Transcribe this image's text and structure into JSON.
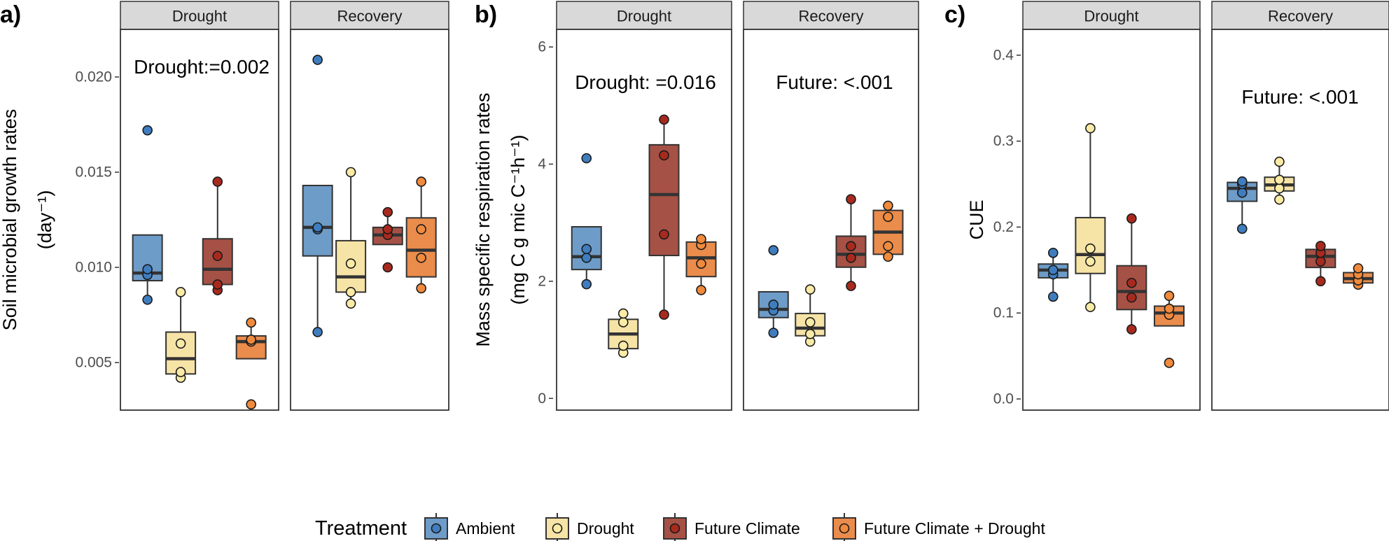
{
  "chart_data": [
    {
      "type": "box",
      "panel_label": "a)",
      "ylabel": "Soil microbial growth rates",
      "ylabel_unit": "(day⁻¹)",
      "ylim": [
        0.0025,
        0.0225
      ],
      "yticks": [
        0.005,
        0.01,
        0.015,
        0.02
      ],
      "ytick_labels": [
        "0.005",
        "0.010",
        "0.015",
        "0.020"
      ],
      "facets": [
        {
          "title": "Drought",
          "annotation": "Drought:=0.002",
          "groups": [
            {
              "treatment": "Ambient",
              "q1": 0.0093,
              "median": 0.0097,
              "q3": 0.0117,
              "whisker_low": 0.0083,
              "whisker_high": 0.0117,
              "points": [
                0.0083,
                0.0096,
                0.0099,
                0.0172
              ]
            },
            {
              "treatment": "Drought",
              "q1": 0.0044,
              "median": 0.0052,
              "q3": 0.0066,
              "whisker_low": 0.0042,
              "whisker_high": 0.0087,
              "points": [
                0.0042,
                0.0045,
                0.006,
                0.0087
              ]
            },
            {
              "treatment": "Future Climate",
              "q1": 0.0091,
              "median": 0.0099,
              "q3": 0.0115,
              "whisker_low": 0.0088,
              "whisker_high": 0.0145,
              "points": [
                0.0088,
                0.0091,
                0.0106,
                0.0145
              ]
            },
            {
              "treatment": "Future Climate + Drought",
              "q1": 0.0052,
              "median": 0.0061,
              "q3": 0.0064,
              "whisker_low": 0.0052,
              "whisker_high": 0.0071,
              "points": [
                0.0028,
                0.0061,
                0.0062,
                0.0071
              ]
            }
          ]
        },
        {
          "title": "Recovery",
          "annotation": "",
          "groups": [
            {
              "treatment": "Ambient",
              "q1": 0.0106,
              "median": 0.0121,
              "q3": 0.0143,
              "whisker_low": 0.0066,
              "whisker_high": 0.0143,
              "points": [
                0.0066,
                0.012,
                0.0121,
                0.0209
              ]
            },
            {
              "treatment": "Drought",
              "q1": 0.0087,
              "median": 0.0095,
              "q3": 0.0114,
              "whisker_low": 0.0081,
              "whisker_high": 0.015,
              "points": [
                0.0081,
                0.0087,
                0.0102,
                0.015
              ]
            },
            {
              "treatment": "Future Climate",
              "q1": 0.0112,
              "median": 0.0117,
              "q3": 0.0121,
              "whisker_low": 0.0112,
              "whisker_high": 0.0129,
              "points": [
                0.01,
                0.0117,
                0.012,
                0.0129
              ]
            },
            {
              "treatment": "Future Climate + Drought",
              "q1": 0.0095,
              "median": 0.0109,
              "q3": 0.0126,
              "whisker_low": 0.0089,
              "whisker_high": 0.0145,
              "points": [
                0.0089,
                0.0105,
                0.012,
                0.0145
              ]
            }
          ]
        }
      ]
    },
    {
      "type": "box",
      "panel_label": "b)",
      "ylabel": "Mass specific respiration rates",
      "ylabel_unit": "(mg C g mic C⁻¹h⁻¹)",
      "ylim": [
        -0.2,
        6.3
      ],
      "yticks": [
        0,
        2,
        4,
        6
      ],
      "ytick_labels": [
        "0",
        "2",
        "4",
        "6"
      ],
      "facets": [
        {
          "title": "Drought",
          "annotation": "Drought: =0.016",
          "groups": [
            {
              "treatment": "Ambient",
              "q1": 2.2,
              "median": 2.42,
              "q3": 2.93,
              "whisker_low": 1.95,
              "whisker_high": 2.93,
              "points": [
                1.95,
                2.4,
                2.55,
                4.1
              ]
            },
            {
              "treatment": "Drought",
              "q1": 0.85,
              "median": 1.1,
              "q3": 1.35,
              "whisker_low": 0.78,
              "whisker_high": 1.45,
              "points": [
                0.78,
                0.9,
                1.3,
                1.45
              ]
            },
            {
              "treatment": "Future Climate",
              "q1": 2.44,
              "median": 3.48,
              "q3": 4.33,
              "whisker_low": 1.43,
              "whisker_high": 4.76,
              "points": [
                1.43,
                2.8,
                4.15,
                4.76
              ]
            },
            {
              "treatment": "Future Climate + Drought",
              "q1": 2.08,
              "median": 2.4,
              "q3": 2.67,
              "whisker_low": 1.85,
              "whisker_high": 2.72,
              "points": [
                1.85,
                2.3,
                2.62,
                2.72
              ]
            }
          ]
        },
        {
          "title": "Recovery",
          "annotation": "Future: <.001",
          "groups": [
            {
              "treatment": "Ambient",
              "q1": 1.38,
              "median": 1.52,
              "q3": 1.82,
              "whisker_low": 1.12,
              "whisker_high": 1.82,
              "points": [
                1.12,
                1.5,
                1.6,
                2.53
              ]
            },
            {
              "treatment": "Drought",
              "q1": 1.07,
              "median": 1.2,
              "q3": 1.45,
              "whisker_low": 0.97,
              "whisker_high": 1.86,
              "points": [
                0.97,
                1.1,
                1.3,
                1.86
              ]
            },
            {
              "treatment": "Future Climate",
              "q1": 2.24,
              "median": 2.46,
              "q3": 2.77,
              "whisker_low": 1.92,
              "whisker_high": 3.4,
              "points": [
                1.92,
                2.4,
                2.6,
                3.4
              ]
            },
            {
              "treatment": "Future Climate + Drought",
              "q1": 2.46,
              "median": 2.84,
              "q3": 3.21,
              "whisker_low": 2.42,
              "whisker_high": 3.29,
              "points": [
                2.42,
                2.6,
                3.1,
                3.29
              ]
            }
          ]
        }
      ]
    },
    {
      "type": "box",
      "panel_label": "c)",
      "ylabel": "CUE",
      "ylim": [
        -0.013,
        0.43
      ],
      "yticks": [
        0.0,
        0.1,
        0.2,
        0.3,
        0.4
      ],
      "ytick_labels": [
        "0.0",
        "0.1",
        "0.2",
        "0.3",
        "0.4"
      ],
      "facets": [
        {
          "title": "Drought",
          "annotation": "",
          "groups": [
            {
              "treatment": "Ambient",
              "q1": 0.141,
              "median": 0.15,
              "q3": 0.157,
              "whisker_low": 0.119,
              "whisker_high": 0.17,
              "points": [
                0.119,
                0.145,
                0.15,
                0.17
              ]
            },
            {
              "treatment": "Drought",
              "q1": 0.146,
              "median": 0.168,
              "q3": 0.211,
              "whisker_low": 0.107,
              "whisker_high": 0.315,
              "points": [
                0.107,
                0.16,
                0.175,
                0.315
              ]
            },
            {
              "treatment": "Future Climate",
              "q1": 0.104,
              "median": 0.125,
              "q3": 0.155,
              "whisker_low": 0.081,
              "whisker_high": 0.21,
              "points": [
                0.081,
                0.118,
                0.135,
                0.21
              ]
            },
            {
              "treatment": "Future Climate + Drought",
              "q1": 0.085,
              "median": 0.1,
              "q3": 0.108,
              "whisker_low": 0.085,
              "whisker_high": 0.12,
              "points": [
                0.042,
                0.098,
                0.105,
                0.12
              ]
            }
          ]
        },
        {
          "title": "Recovery",
          "annotation": "Future: <.001",
          "groups": [
            {
              "treatment": "Ambient",
              "q1": 0.23,
              "median": 0.245,
              "q3": 0.252,
              "whisker_low": 0.2,
              "whisker_high": 0.255,
              "points": [
                0.198,
                0.24,
                0.25,
                0.253
              ]
            },
            {
              "treatment": "Drought",
              "q1": 0.242,
              "median": 0.249,
              "q3": 0.258,
              "whisker_low": 0.232,
              "whisker_high": 0.276,
              "points": [
                0.232,
                0.245,
                0.255,
                0.276
              ]
            },
            {
              "treatment": "Future Climate",
              "q1": 0.153,
              "median": 0.166,
              "q3": 0.174,
              "whisker_low": 0.137,
              "whisker_high": 0.178,
              "points": [
                0.137,
                0.16,
                0.17,
                0.178
              ]
            },
            {
              "treatment": "Future Climate + Drought",
              "q1": 0.135,
              "median": 0.14,
              "q3": 0.147,
              "whisker_low": 0.133,
              "whisker_high": 0.152,
              "points": [
                0.133,
                0.138,
                0.145,
                0.152
              ]
            }
          ]
        }
      ]
    }
  ],
  "legend": {
    "title": "Treatment",
    "items": [
      {
        "label": "Ambient",
        "fill": "#6e9cc8",
        "point": "#3f7dbf"
      },
      {
        "label": "Drought",
        "fill": "#f6e3a6",
        "point": "#f9eba6"
      },
      {
        "label": "Future Climate",
        "fill": "#a65145",
        "point": "#a82a1e"
      },
      {
        "label": "Future Climate + Drought",
        "fill": "#ea8c4c",
        "point": "#f08a3c"
      }
    ]
  },
  "colors": {
    "strip_fill": "#d9d9d9",
    "border": "#333333",
    "line": "#333333"
  }
}
